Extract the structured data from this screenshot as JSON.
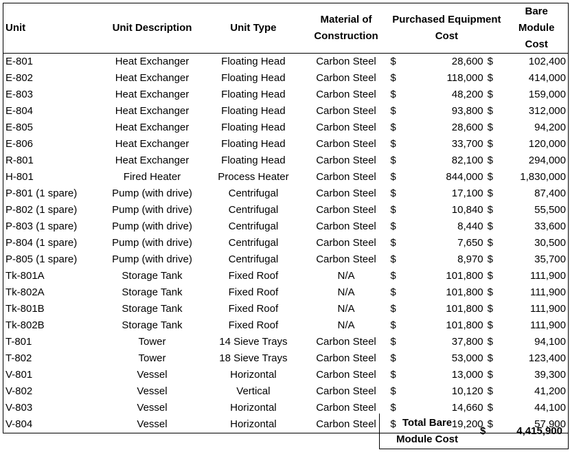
{
  "headers": {
    "unit": "Unit",
    "description": "Unit Description",
    "type": "Unit Type",
    "material": "Material of Construction",
    "purchased": "Purchased Equipment Cost",
    "bare_module": "Bare Module Cost"
  },
  "currency_symbol": "$",
  "rows": [
    {
      "unit": "E-801",
      "description": "Heat Exchanger",
      "type": "Floating Head",
      "material": "Carbon Steel",
      "purchased": "28,600",
      "bare_module": "102,400"
    },
    {
      "unit": "E-802",
      "description": "Heat Exchanger",
      "type": "Floating Head",
      "material": "Carbon Steel",
      "purchased": "118,000",
      "bare_module": "414,000"
    },
    {
      "unit": "E-803",
      "description": "Heat Exchanger",
      "type": "Floating Head",
      "material": "Carbon Steel",
      "purchased": "48,200",
      "bare_module": "159,000"
    },
    {
      "unit": "E-804",
      "description": "Heat Exchanger",
      "type": "Floating Head",
      "material": "Carbon Steel",
      "purchased": "93,800",
      "bare_module": "312,000"
    },
    {
      "unit": "E-805",
      "description": "Heat Exchanger",
      "type": "Floating Head",
      "material": "Carbon Steel",
      "purchased": "28,600",
      "bare_module": "94,200"
    },
    {
      "unit": "E-806",
      "description": "Heat Exchanger",
      "type": "Floating Head",
      "material": "Carbon Steel",
      "purchased": "33,700",
      "bare_module": "120,000"
    },
    {
      "unit": "R-801",
      "description": "Heat Exchanger",
      "type": "Floating Head",
      "material": "Carbon Steel",
      "purchased": "82,100",
      "bare_module": "294,000"
    },
    {
      "unit": "H-801",
      "description": "Fired Heater",
      "type": "Process Heater",
      "material": "Carbon Steel",
      "purchased": "844,000",
      "bare_module": "1,830,000"
    },
    {
      "unit": "P-801 (1 spare)",
      "description": "Pump (with drive)",
      "type": "Centrifugal",
      "material": "Carbon Steel",
      "purchased": "17,100",
      "bare_module": "87,400"
    },
    {
      "unit": "P-802 (1 spare)",
      "description": "Pump (with drive)",
      "type": "Centrifugal",
      "material": "Carbon Steel",
      "purchased": "10,840",
      "bare_module": "55,500"
    },
    {
      "unit": "P-803 (1 spare)",
      "description": "Pump (with drive)",
      "type": "Centrifugal",
      "material": "Carbon Steel",
      "purchased": "8,440",
      "bare_module": "33,600"
    },
    {
      "unit": "P-804 (1 spare)",
      "description": "Pump (with drive)",
      "type": "Centrifugal",
      "material": "Carbon Steel",
      "purchased": "7,650",
      "bare_module": "30,500"
    },
    {
      "unit": "P-805 (1 spare)",
      "description": "Pump (with drive)",
      "type": "Centrifugal",
      "material": "Carbon Steel",
      "purchased": "8,970",
      "bare_module": "35,700"
    },
    {
      "unit": "Tk-801A",
      "description": "Storage Tank",
      "type": "Fixed Roof",
      "material": "N/A",
      "purchased": "101,800",
      "bare_module": "111,900"
    },
    {
      "unit": "Tk-802A",
      "description": "Storage Tank",
      "type": "Fixed Roof",
      "material": "N/A",
      "purchased": "101,800",
      "bare_module": "111,900"
    },
    {
      "unit": "Tk-801B",
      "description": "Storage Tank",
      "type": "Fixed Roof",
      "material": "N/A",
      "purchased": "101,800",
      "bare_module": "111,900"
    },
    {
      "unit": "Tk-802B",
      "description": "Storage Tank",
      "type": "Fixed Roof",
      "material": "N/A",
      "purchased": "101,800",
      "bare_module": "111,900"
    },
    {
      "unit": "T-801",
      "description": "Tower",
      "type": "14 Sieve Trays",
      "material": "Carbon Steel",
      "purchased": "37,800",
      "bare_module": "94,100"
    },
    {
      "unit": "T-802",
      "description": "Tower",
      "type": "18 Sieve Trays",
      "material": "Carbon Steel",
      "purchased": "53,000",
      "bare_module": "123,400"
    },
    {
      "unit": "V-801",
      "description": "Vessel",
      "type": "Horizontal",
      "material": "Carbon Steel",
      "purchased": "13,000",
      "bare_module": "39,300"
    },
    {
      "unit": "V-802",
      "description": "Vessel",
      "type": "Vertical",
      "material": "Carbon Steel",
      "purchased": "10,120",
      "bare_module": "41,200"
    },
    {
      "unit": "V-803",
      "description": "Vessel",
      "type": "Horizontal",
      "material": "Carbon Steel",
      "purchased": "14,660",
      "bare_module": "44,100"
    },
    {
      "unit": "V-804",
      "description": "Vessel",
      "type": "Horizontal",
      "material": "Carbon Steel",
      "purchased": "19,200",
      "bare_module": "57,900"
    }
  ],
  "total": {
    "label": "Total Bare\nModule Cost",
    "currency_symbol": "$",
    "value": "4,415,900"
  }
}
